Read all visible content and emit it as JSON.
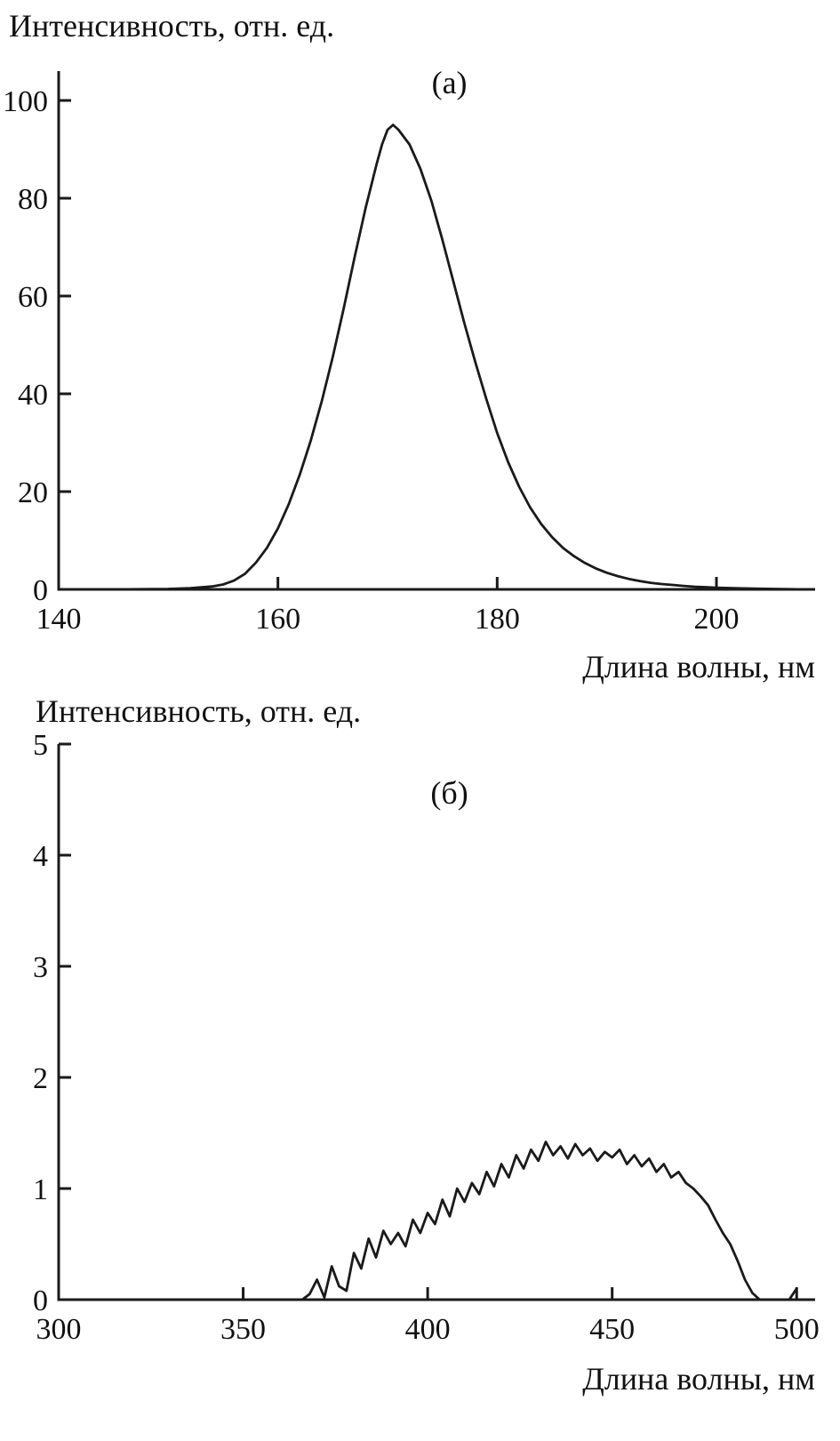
{
  "page": {
    "background": "#ffffff",
    "line_color": "#1a1a1a",
    "text_color": "#111111"
  },
  "chart_data": [
    {
      "type": "line",
      "panel_label": "(а)",
      "ylabel": "Интенсивность, отн. ед.",
      "xlabel": "Длина волны, нм",
      "legend": "none",
      "grid": false,
      "xlim": [
        140,
        209
      ],
      "ylim": [
        0,
        106
      ],
      "xticks": [
        140,
        160,
        180,
        200
      ],
      "yticks": [
        0,
        20,
        40,
        60,
        80,
        100
      ],
      "x": [
        140,
        145,
        150,
        152,
        154,
        155,
        156,
        157,
        158,
        159,
        160,
        161,
        162,
        163,
        164,
        165,
        166,
        167,
        168,
        168.5,
        169,
        169.5,
        170,
        170.5,
        171,
        172,
        173,
        174,
        175,
        176,
        177,
        178,
        179,
        180,
        181,
        182,
        183,
        184,
        185,
        186,
        187,
        188,
        189,
        190,
        191,
        192,
        193,
        194,
        195,
        196,
        197,
        198,
        199,
        200,
        202,
        204,
        206,
        208
      ],
      "y": [
        0,
        0,
        0.1,
        0.25,
        0.6,
        1,
        1.8,
        3.2,
        5.5,
        8.5,
        12.5,
        17.5,
        23.5,
        30.5,
        38.5,
        47.5,
        57.5,
        68,
        78,
        82.5,
        87,
        91,
        94,
        95,
        94,
        91,
        86,
        79.5,
        71.5,
        63,
        54.5,
        46.5,
        39,
        32,
        26,
        21,
        16.8,
        13.4,
        10.7,
        8.5,
        6.8,
        5.4,
        4.3,
        3.4,
        2.7,
        2.15,
        1.7,
        1.35,
        1.1,
        0.9,
        0.7,
        0.55,
        0.45,
        0.35,
        0.22,
        0.12,
        0.05,
        0
      ]
    },
    {
      "type": "line",
      "panel_label": "(б)",
      "ylabel": "Интенсивность, отн. ед.",
      "xlabel": "Длина волны, нм",
      "legend": "none",
      "grid": false,
      "xlim": [
        300,
        505
      ],
      "ylim": [
        0,
        5
      ],
      "xticks": [
        300,
        350,
        400,
        450,
        500
      ],
      "yticks": [
        0,
        1,
        2,
        3,
        4,
        5
      ],
      "x": [
        300,
        320,
        340,
        360,
        366,
        368,
        370,
        372,
        374,
        376,
        378,
        380,
        382,
        384,
        386,
        388,
        390,
        392,
        394,
        396,
        398,
        400,
        402,
        404,
        406,
        408,
        410,
        412,
        414,
        416,
        418,
        420,
        422,
        424,
        426,
        428,
        430,
        432,
        434,
        436,
        438,
        440,
        442,
        444,
        446,
        448,
        450,
        452,
        454,
        456,
        458,
        460,
        462,
        464,
        466,
        468,
        470,
        472,
        474,
        476,
        478,
        480,
        482,
        484,
        486,
        488,
        490,
        492,
        494,
        496,
        498,
        500
      ],
      "y": [
        0,
        0,
        0,
        0,
        0,
        0.05,
        0.18,
        0.02,
        0.3,
        0.12,
        0.08,
        0.42,
        0.28,
        0.55,
        0.38,
        0.62,
        0.5,
        0.6,
        0.48,
        0.72,
        0.6,
        0.78,
        0.68,
        0.9,
        0.75,
        1.0,
        0.88,
        1.05,
        0.95,
        1.15,
        1.02,
        1.22,
        1.1,
        1.3,
        1.18,
        1.35,
        1.25,
        1.42,
        1.3,
        1.38,
        1.27,
        1.4,
        1.3,
        1.36,
        1.25,
        1.33,
        1.28,
        1.35,
        1.22,
        1.3,
        1.2,
        1.27,
        1.15,
        1.22,
        1.1,
        1.15,
        1.05,
        1.0,
        0.93,
        0.85,
        0.72,
        0.6,
        0.5,
        0.35,
        0.18,
        0.06,
        0,
        0,
        0,
        0,
        0,
        0.1
      ]
    }
  ]
}
